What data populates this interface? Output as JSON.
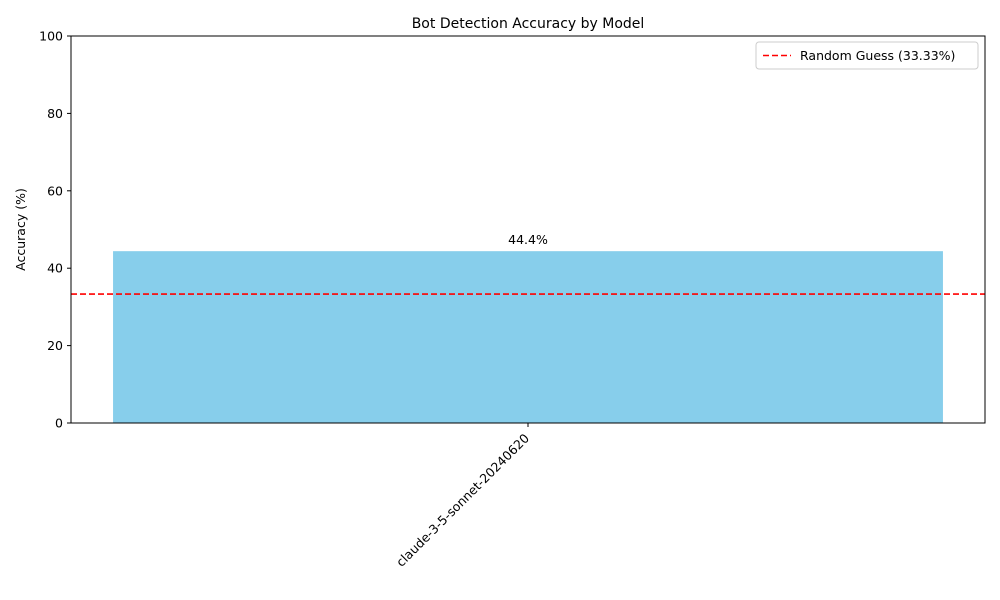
{
  "chart_data": {
    "type": "bar",
    "title": "Bot Detection Accuracy by Model",
    "xlabel": "",
    "ylabel": "Accuracy (%)",
    "categories": [
      "claude-3-5-sonnet-20240620"
    ],
    "values": [
      44.4
    ],
    "data_labels": [
      "44.4%"
    ],
    "ylim": [
      0,
      100
    ],
    "yticks": [
      "0",
      "20",
      "40",
      "60",
      "80",
      "100"
    ],
    "bar_color": "#87ceeb",
    "grid": false,
    "reference_line": {
      "value": 33.33,
      "label": "Random Guess (33.33%)",
      "color": "#ff0000",
      "style": "dashed"
    },
    "legend_position": "top-right"
  }
}
